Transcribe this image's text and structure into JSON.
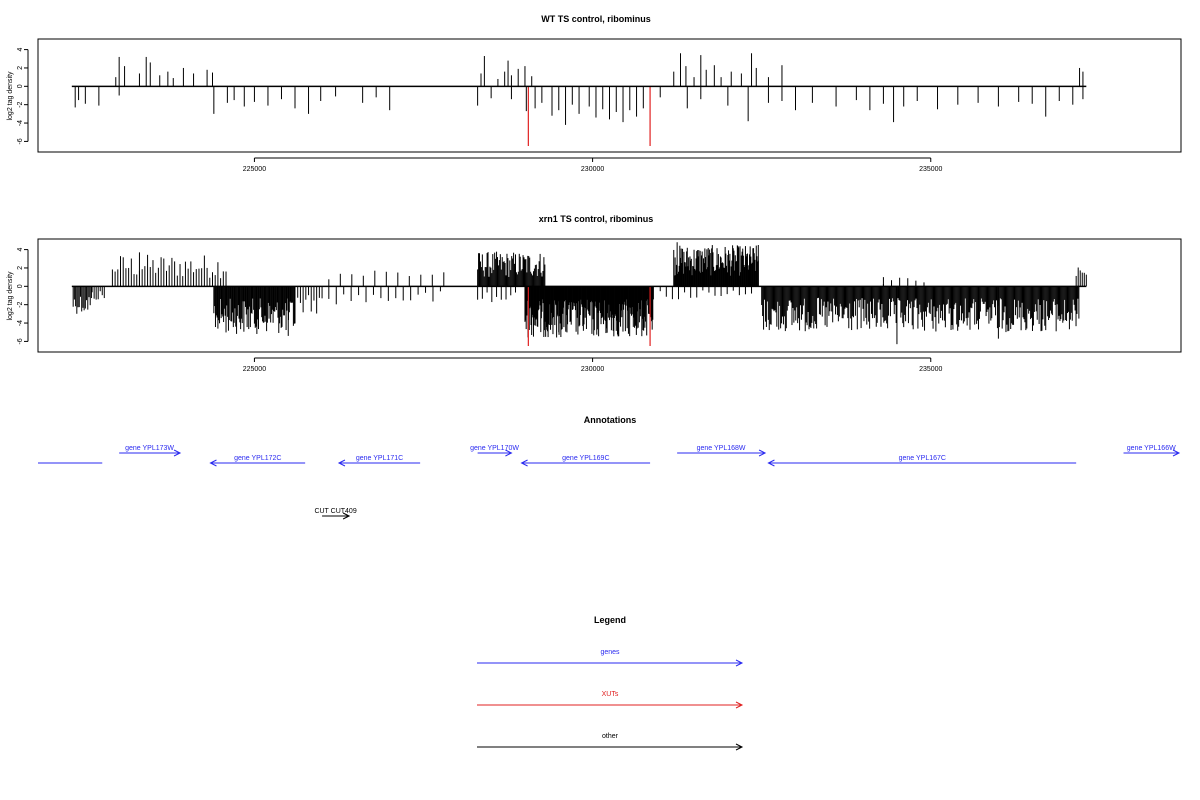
{
  "chart_data": [
    {
      "type": "bar",
      "title": "WT TS control, ribominus",
      "xlabel": "",
      "ylabel": "log2 tag density",
      "xlim": [
        221800,
        238700
      ],
      "ylim": [
        -6.5,
        4.5
      ],
      "x_ticks": [
        225000,
        230000,
        235000
      ],
      "x_tick_labels": [
        "225000",
        "230000",
        "235000"
      ],
      "y_ticks": [
        4,
        2,
        0,
        -2,
        -4,
        -6
      ],
      "y_tick_labels": [
        "4",
        "2",
        "0",
        "-2",
        "-4",
        "-6"
      ],
      "baseline_range": [
        222300,
        237300
      ],
      "highlight_color": "#e02020",
      "highlight_markers": [
        {
          "x": 229050,
          "value": -6.5
        },
        {
          "x": 230850,
          "value": -6.5
        }
      ],
      "bar_color": "#000000",
      "grid": false,
      "series": [
        {
          "positive": [
            [
              222950,
              1.0
            ],
            [
              223000,
              3.2
            ],
            [
              223080,
              2.2
            ],
            [
              223300,
              1.4
            ],
            [
              223400,
              3.2
            ],
            [
              223460,
              2.6
            ],
            [
              223600,
              1.2
            ],
            [
              223720,
              1.6
            ],
            [
              223800,
              0.9
            ],
            [
              223950,
              2.0
            ],
            [
              224100,
              1.4
            ],
            [
              224300,
              1.8
            ],
            [
              224380,
              1.5
            ],
            [
              228350,
              1.4
            ],
            [
              228400,
              3.3
            ],
            [
              228600,
              0.8
            ],
            [
              228700,
              1.6
            ],
            [
              228750,
              2.8
            ],
            [
              228800,
              1.2
            ],
            [
              228900,
              1.9
            ],
            [
              229000,
              2.2
            ],
            [
              229100,
              1.1
            ],
            [
              231200,
              1.6
            ],
            [
              231300,
              3.6
            ],
            [
              231380,
              2.2
            ],
            [
              231500,
              1.0
            ],
            [
              231600,
              3.4
            ],
            [
              231680,
              1.8
            ],
            [
              231800,
              2.3
            ],
            [
              231900,
              1.0
            ],
            [
              232050,
              1.6
            ],
            [
              232200,
              1.4
            ],
            [
              232350,
              3.6
            ],
            [
              232420,
              2.0
            ],
            [
              232600,
              1.0
            ],
            [
              232800,
              2.3
            ],
            [
              237200,
              2.0
            ],
            [
              237250,
              1.6
            ]
          ],
          "negative": [
            [
              222350,
              -2.3
            ],
            [
              222400,
              -1.5
            ],
            [
              222500,
              -1.9
            ],
            [
              222700,
              -2.1
            ],
            [
              223000,
              -1.0
            ],
            [
              224400,
              -3.0
            ],
            [
              224600,
              -1.8
            ],
            [
              224700,
              -1.5
            ],
            [
              224850,
              -2.2
            ],
            [
              225000,
              -1.7
            ],
            [
              225200,
              -2.1
            ],
            [
              225400,
              -1.4
            ],
            [
              225600,
              -2.4
            ],
            [
              225800,
              -3.0
            ],
            [
              225980,
              -1.6
            ],
            [
              226200,
              -1.1
            ],
            [
              226600,
              -1.8
            ],
            [
              226800,
              -1.2
            ],
            [
              227000,
              -2.6
            ],
            [
              228300,
              -2.1
            ],
            [
              228500,
              -1.3
            ],
            [
              228800,
              -1.4
            ],
            [
              229020,
              -2.7
            ],
            [
              229150,
              -2.4
            ],
            [
              229250,
              -1.8
            ],
            [
              229400,
              -3.2
            ],
            [
              229500,
              -2.6
            ],
            [
              229600,
              -4.2
            ],
            [
              229700,
              -2.0
            ],
            [
              229800,
              -3.0
            ],
            [
              229950,
              -2.2
            ],
            [
              230050,
              -3.4
            ],
            [
              230150,
              -2.5
            ],
            [
              230250,
              -3.6
            ],
            [
              230350,
              -2.8
            ],
            [
              230450,
              -3.9
            ],
            [
              230550,
              -2.6
            ],
            [
              230650,
              -3.3
            ],
            [
              230750,
              -2.4
            ],
            [
              231000,
              -1.2
            ],
            [
              231400,
              -2.4
            ],
            [
              231600,
              -1.4
            ],
            [
              232000,
              -2.1
            ],
            [
              232300,
              -3.8
            ],
            [
              232600,
              -1.8
            ],
            [
              232800,
              -1.6
            ],
            [
              233000,
              -2.6
            ],
            [
              233250,
              -1.8
            ],
            [
              233600,
              -2.2
            ],
            [
              233900,
              -1.5
            ],
            [
              234100,
              -2.6
            ],
            [
              234300,
              -1.9
            ],
            [
              234450,
              -3.9
            ],
            [
              234600,
              -2.2
            ],
            [
              234800,
              -1.6
            ],
            [
              235100,
              -2.5
            ],
            [
              235400,
              -2.0
            ],
            [
              235700,
              -1.8
            ],
            [
              236000,
              -2.2
            ],
            [
              236300,
              -1.7
            ],
            [
              236500,
              -1.9
            ],
            [
              236700,
              -3.3
            ],
            [
              236900,
              -1.6
            ],
            [
              237100,
              -2.0
            ],
            [
              237250,
              -1.4
            ]
          ]
        }
      ]
    },
    {
      "type": "bar",
      "title": "xrn1 TS control, ribominus",
      "xlabel": "",
      "ylabel": "log2 tag density",
      "xlim": [
        221800,
        238700
      ],
      "ylim": [
        -6.5,
        4.5
      ],
      "x_ticks": [
        225000,
        230000,
        235000
      ],
      "x_tick_labels": [
        "225000",
        "230000",
        "235000"
      ],
      "y_ticks": [
        4,
        2,
        0,
        -2,
        -4,
        -6
      ],
      "y_tick_labels": [
        "4",
        "2",
        "0",
        "-2",
        "-4",
        "-6"
      ],
      "baseline_range": [
        222300,
        237300
      ],
      "highlight_color": "#e02020",
      "highlight_markers": [
        {
          "x": 229050,
          "value": -6.5
        },
        {
          "x": 230850,
          "value": -6.5
        }
      ],
      "bar_color": "#000000",
      "grid": false,
      "dense_regions": [
        {
          "from": 222320,
          "to": 222600,
          "sign": "neg",
          "max": 3.0,
          "step": 18
        },
        {
          "from": 222600,
          "to": 222800,
          "sign": "neg",
          "max": 1.6,
          "step": 30
        },
        {
          "from": 222900,
          "to": 224600,
          "sign": "pos",
          "max": 3.5,
          "step": 40
        },
        {
          "from": 224400,
          "to": 225600,
          "sign": "neg",
          "max": 5.2,
          "step": 12
        },
        {
          "from": 225600,
          "to": 226000,
          "sign": "neg",
          "max": 3.0,
          "step": 40
        },
        {
          "from": 226100,
          "to": 227800,
          "sign": "neg",
          "max": 2.0,
          "step": 110
        },
        {
          "from": 226100,
          "to": 227800,
          "sign": "pos",
          "max": 2.2,
          "step": 170
        },
        {
          "from": 228300,
          "to": 229300,
          "sign": "pos",
          "max": 3.8,
          "step": 14
        },
        {
          "from": 228300,
          "to": 228900,
          "sign": "neg",
          "max": 2.0,
          "step": 70
        },
        {
          "from": 229000,
          "to": 230900,
          "sign": "neg",
          "max": 5.6,
          "step": 9
        },
        {
          "from": 231200,
          "to": 232450,
          "sign": "pos",
          "max": 4.5,
          "step": 10
        },
        {
          "from": 231000,
          "to": 232400,
          "sign": "neg",
          "max": 1.5,
          "step": 90
        },
        {
          "from": 232500,
          "to": 237200,
          "sign": "neg",
          "max": 5.0,
          "step": 14
        },
        {
          "from": 234300,
          "to": 235000,
          "sign": "pos",
          "max": 1.0,
          "step": 120
        },
        {
          "from": 237150,
          "to": 237300,
          "sign": "pos",
          "max": 2.3,
          "step": 30
        }
      ],
      "series": [
        {
          "positive": [
            [
              223300,
              3.7
            ],
            [
              231250,
              4.8
            ],
            [
              232450,
              4.5
            ],
            [
              234300,
              1.0
            ]
          ],
          "negative": [
            [
              225500,
              -5.4
            ],
            [
              229500,
              -5.0
            ],
            [
              234500,
              -6.3
            ],
            [
              236000,
              -5.7
            ]
          ]
        }
      ]
    }
  ],
  "annotations": {
    "title": "Annotations",
    "genes": [
      {
        "label": "",
        "start": 221800,
        "end": 222750,
        "strand": "none",
        "row": "low",
        "color": "#2a2af0"
      },
      {
        "label": "gene YPL173W",
        "start": 223000,
        "end": 223900,
        "strand": "+",
        "row": "high",
        "color": "#2a2af0"
      },
      {
        "label": "gene YPL172C",
        "start": 224350,
        "end": 225750,
        "strand": "-",
        "row": "low",
        "color": "#2a2af0"
      },
      {
        "label": "gene YPL171C",
        "start": 226250,
        "end": 227450,
        "strand": "-",
        "row": "low",
        "color": "#2a2af0"
      },
      {
        "label": "gene YPL170W",
        "start": 228300,
        "end": 228800,
        "strand": "+",
        "row": "high",
        "color": "#2a2af0"
      },
      {
        "label": "gene YPL169C",
        "start": 228950,
        "end": 230850,
        "strand": "-",
        "row": "low",
        "color": "#2a2af0"
      },
      {
        "label": "gene YPL168W",
        "start": 231250,
        "end": 232550,
        "strand": "+",
        "row": "high",
        "color": "#2a2af0"
      },
      {
        "label": "gene YPL167C",
        "start": 232600,
        "end": 237150,
        "strand": "-",
        "row": "low",
        "color": "#2a2af0"
      },
      {
        "label": "gene YPL166W",
        "start": 237850,
        "end": 238700,
        "strand": "+",
        "row": "high",
        "color": "#2a2af0"
      }
    ],
    "other": [
      {
        "label": "CUT CUT409",
        "start": 226000,
        "end": 226400,
        "strand": "+",
        "color": "#000000"
      }
    ]
  },
  "legend": {
    "title": "Legend",
    "items": [
      {
        "label": "genes",
        "color": "#2a2af0"
      },
      {
        "label": "XUTs",
        "color": "#e02020"
      },
      {
        "label": "other",
        "color": "#000000"
      }
    ]
  }
}
